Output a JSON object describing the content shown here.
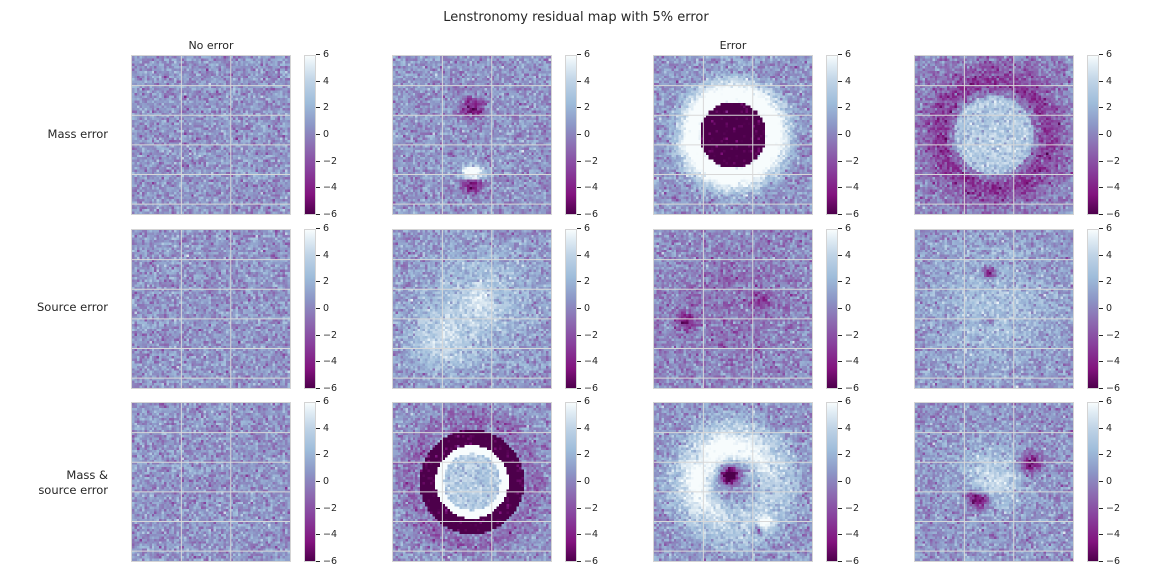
{
  "chart_data": {
    "type": "heatmap",
    "title": "Lenstronomy residual map with 5% error",
    "column_titles": [
      "No error",
      "",
      "Error",
      ""
    ],
    "row_labels": [
      "Mass error",
      "Source error",
      "Mass &\nsource error"
    ],
    "colormap": "BuPu",
    "colormap_colors": [
      "#4d004b",
      "#81137d",
      "#88419d",
      "#8c6bb1",
      "#8c96c6",
      "#9ebcda",
      "#bfd3e6",
      "#e0ecf4",
      "#f7fcfd"
    ],
    "colorbar_ticks": [
      "6",
      "4",
      "2",
      "0",
      "−2",
      "−4",
      "−6"
    ],
    "vmin": -6,
    "vmax": 6,
    "grid": true,
    "panels": [
      {
        "row": 0,
        "col": 0,
        "pattern": "noise"
      },
      {
        "row": 0,
        "col": 1,
        "pattern": "dipole-vertical"
      },
      {
        "row": 0,
        "col": 2,
        "pattern": "dark-disk-bright-ring"
      },
      {
        "row": 0,
        "col": 3,
        "pattern": "bright-disk-dark-halo"
      },
      {
        "row": 1,
        "col": 0,
        "pattern": "noise"
      },
      {
        "row": 1,
        "col": 1,
        "pattern": "diffuse-bright-lower-left"
      },
      {
        "row": 1,
        "col": 2,
        "pattern": "faint-dark-spots"
      },
      {
        "row": 1,
        "col": 3,
        "pattern": "central-dark-spots"
      },
      {
        "row": 2,
        "col": 0,
        "pattern": "noise"
      },
      {
        "row": 2,
        "col": 1,
        "pattern": "bright-ring-dark-annulus"
      },
      {
        "row": 2,
        "col": 2,
        "pattern": "asymmetric-ring"
      },
      {
        "row": 2,
        "col": 3,
        "pattern": "bright-blob-dark-crescent"
      }
    ]
  }
}
